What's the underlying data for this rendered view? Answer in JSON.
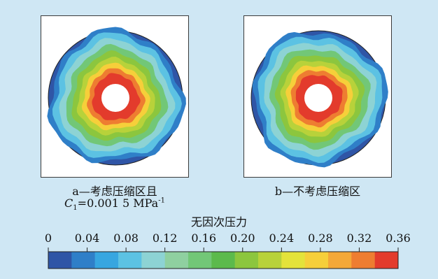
{
  "captions": {
    "a_line1": "a—考虑压缩区且",
    "a_c": "C",
    "a_sub": "1",
    "a_value": "=0.001 5 MPa",
    "a_sup": "-1",
    "b": "b—不考虑压缩区"
  },
  "colorbar": {
    "title": "无因次压力",
    "tick_labels": [
      "0",
      "0.04",
      "0.08",
      "0.12",
      "0.16",
      "0.20",
      "0.24",
      "0.28",
      "0.32",
      "0.36"
    ],
    "colors": [
      "#2f55a6",
      "#2f7fc8",
      "#37a6e0",
      "#5cc2e3",
      "#8dd3d4",
      "#8fd0a0",
      "#72c777",
      "#5cba4c",
      "#8cc63e",
      "#b8d23a",
      "#e4e33a",
      "#f6cf3a",
      "#f4a838",
      "#ee7d31",
      "#e33b2c"
    ]
  },
  "chart_data": [
    {
      "type": "heatmap",
      "title": "a—考虑压缩区且 C1=0.001 5 MPa-1",
      "description_of_field": "radial pressure field around wellbore",
      "range": [
        0,
        0.36
      ],
      "radial_levels": [
        0.36,
        0.32,
        0.28,
        0.24,
        0.2,
        0.16,
        0.12,
        0.08,
        0.04,
        0
      ]
    },
    {
      "type": "heatmap",
      "title": "b—不考虑压缩区",
      "range": [
        0,
        0.36
      ],
      "radial_levels": [
        0.36,
        0.32,
        0.28,
        0.24,
        0.2,
        0.16,
        0.12,
        0.08,
        0.04,
        0
      ]
    }
  ]
}
